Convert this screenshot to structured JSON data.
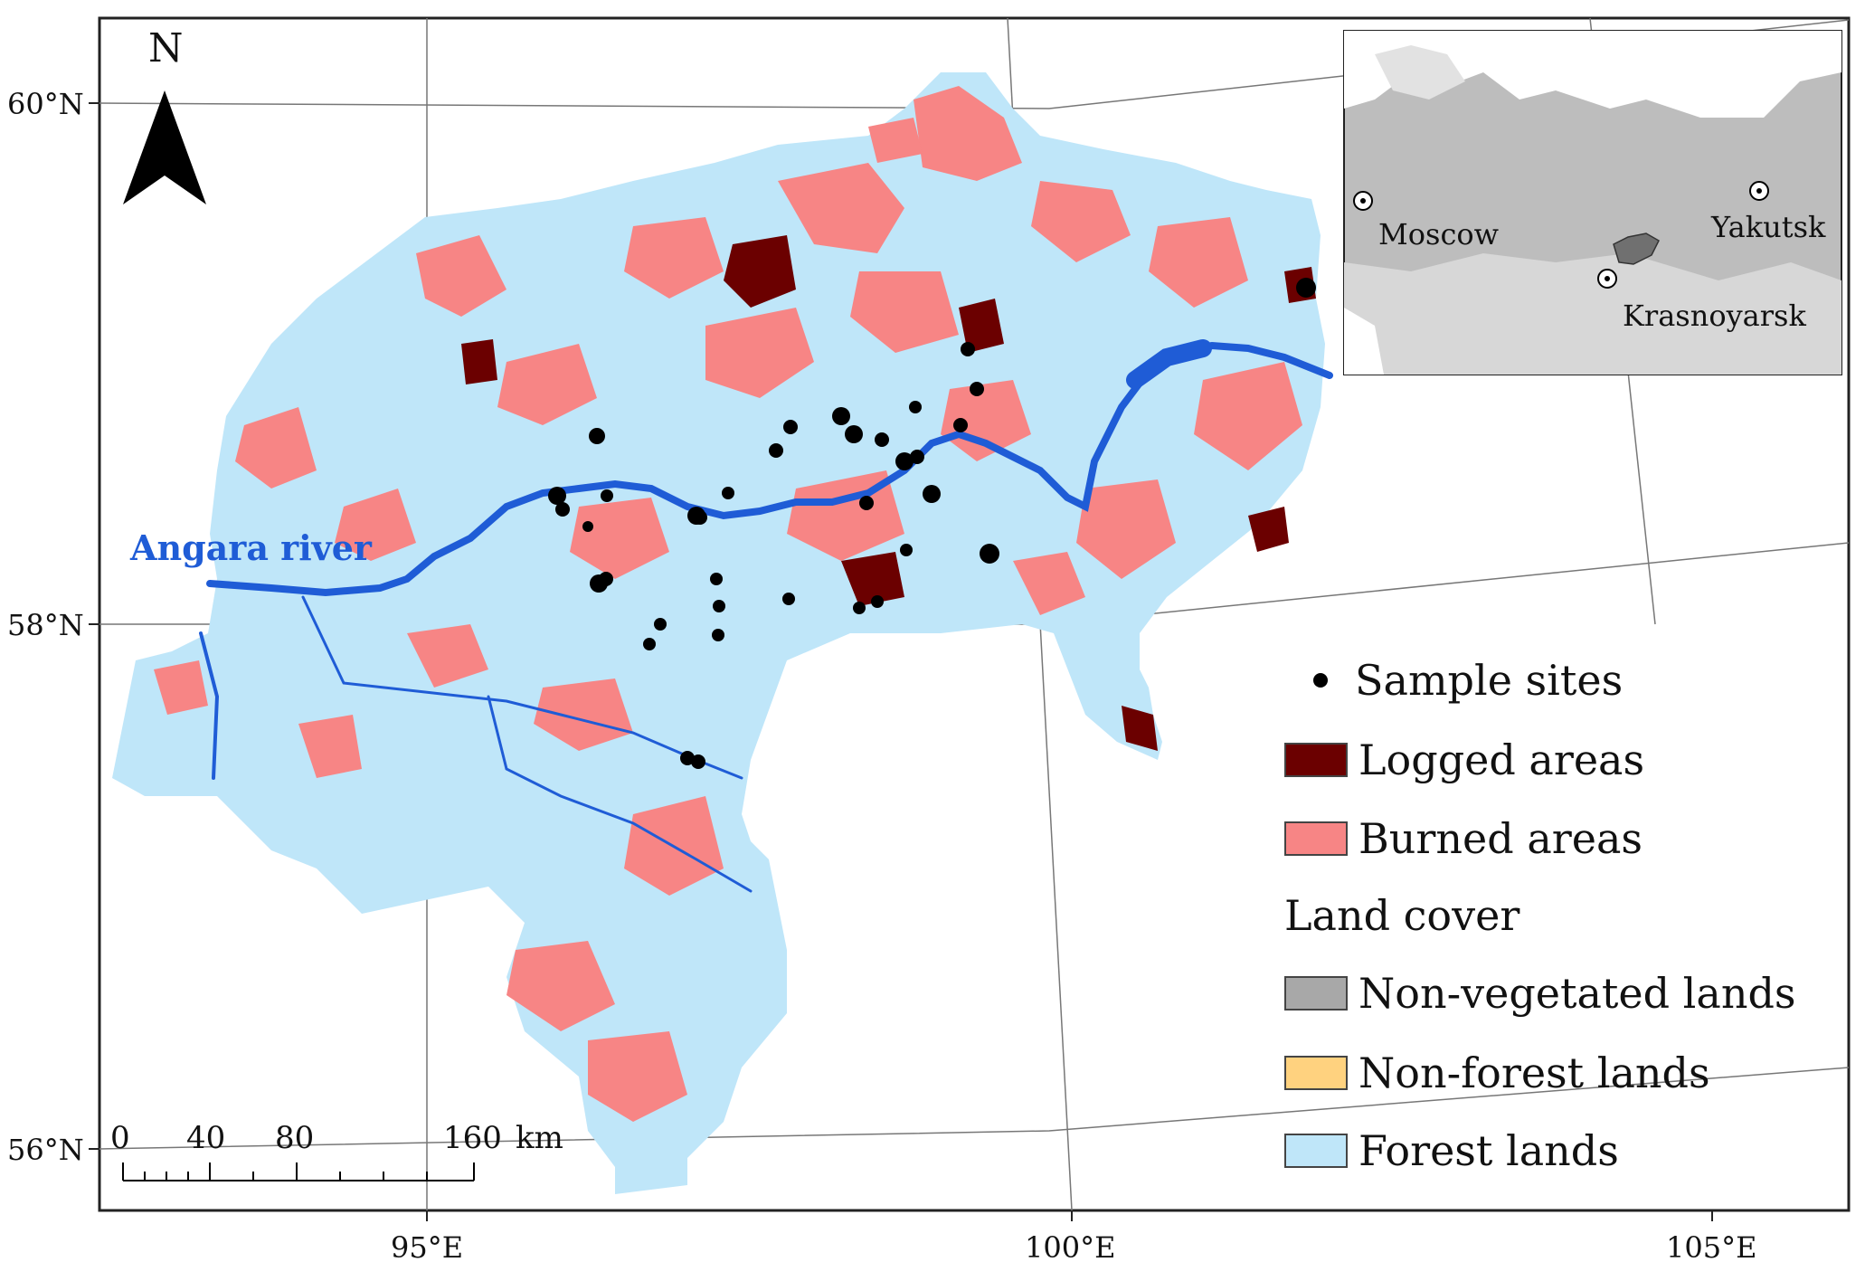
{
  "north_label": "N",
  "river_label": "Angara river",
  "latitudes": [
    "60°N",
    "58°N",
    "56°N"
  ],
  "longitudes": [
    "95°E",
    "100°E",
    "105°E"
  ],
  "scale_bar": {
    "ticks": [
      "0",
      "40",
      "80",
      "160"
    ],
    "unit": "km"
  },
  "inset": {
    "cities": [
      "Moscow",
      "Yakutsk",
      "Krasnoyarsk"
    ]
  },
  "legend": {
    "sample_sites": "Sample sites",
    "logged": "Logged areas",
    "burned": "Burned areas",
    "land_cover_title": "Land cover",
    "non_vegetated": "Non-vegetated lands",
    "non_forest": "Non-forest lands",
    "forest": "Forest lands"
  },
  "colors": {
    "forest": "#bfe6f9",
    "burned": "#f78585",
    "logged": "#6b0000",
    "non_forest": "#ffd27f",
    "non_vegetated": "#a8a8a8",
    "river": "#1f5cd6",
    "sample_site": "#000000"
  }
}
